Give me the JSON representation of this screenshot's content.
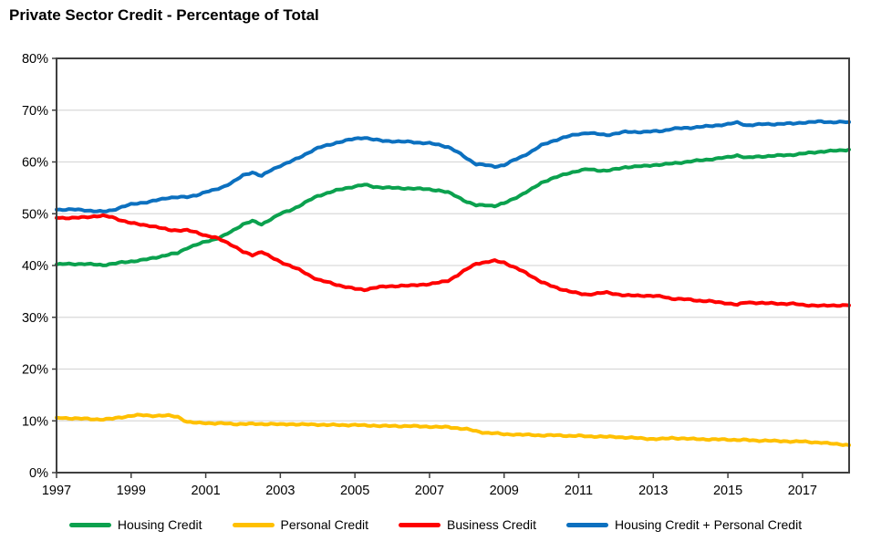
{
  "title": "Private Sector Credit - Percentage of Total",
  "chart_data": {
    "type": "line",
    "title": "Private Sector Credit - Percentage of Total",
    "x_start_year": 1997.0,
    "x_step_years": 0.25,
    "x_axis": {
      "range": [
        1997.0,
        2018.25
      ],
      "tick_years": [
        1997,
        1999,
        2001,
        2003,
        2005,
        2007,
        2009,
        2011,
        2013,
        2015,
        2017
      ],
      "tick_labels": [
        "1997",
        "1999",
        "2001",
        "2003",
        "2005",
        "2007",
        "2009",
        "2011",
        "2013",
        "2015",
        "2017"
      ]
    },
    "y_axis": {
      "range": [
        0,
        80
      ],
      "unit": "%",
      "tick_values": [
        0,
        10,
        20,
        30,
        40,
        50,
        60,
        70,
        80
      ],
      "tick_labels": [
        "0%",
        "10%",
        "20%",
        "30%",
        "40%",
        "50%",
        "60%",
        "70%",
        "80%"
      ]
    },
    "grid": "horizontal-only",
    "grid_color": "#D9D9D9",
    "border_color": "#3F3F3F",
    "legend_position": "bottom",
    "series": [
      {
        "name": "Housing Credit",
        "color": "#0BA14E",
        "values": [
          40.2,
          40.3,
          40.3,
          40.3,
          40.2,
          40.1,
          40.3,
          40.6,
          40.8,
          41.0,
          41.3,
          41.7,
          42.1,
          42.4,
          43.4,
          44.0,
          44.6,
          45.1,
          45.8,
          46.8,
          48.0,
          48.6,
          47.9,
          49.0,
          50.0,
          50.6,
          51.5,
          52.5,
          53.4,
          54.0,
          54.5,
          54.9,
          55.3,
          55.6,
          55.2,
          55.1,
          55.0,
          54.9,
          54.9,
          54.8,
          54.7,
          54.5,
          54.1,
          53.3,
          52.3,
          51.6,
          51.7,
          51.5,
          52.0,
          52.9,
          53.8,
          54.8,
          56.0,
          56.7,
          57.3,
          57.9,
          58.3,
          58.6,
          58.4,
          58.3,
          58.6,
          59.0,
          59.1,
          59.2,
          59.4,
          59.5,
          59.7,
          59.9,
          60.1,
          60.3,
          60.5,
          60.7,
          60.9,
          61.3,
          60.8,
          61.0,
          61.1,
          61.2,
          61.3,
          61.4,
          61.6,
          61.8,
          62.0,
          62.1,
          62.2,
          62.4
        ]
      },
      {
        "name": "Personal Credit",
        "color": "#FFC000",
        "values": [
          10.6,
          10.5,
          10.5,
          10.4,
          10.3,
          10.3,
          10.4,
          10.7,
          11.0,
          11.1,
          11.0,
          11.0,
          11.0,
          10.8,
          9.8,
          9.6,
          9.6,
          9.5,
          9.5,
          9.4,
          9.4,
          9.4,
          9.4,
          9.4,
          9.3,
          9.4,
          9.3,
          9.3,
          9.3,
          9.2,
          9.2,
          9.2,
          9.2,
          9.1,
          9.1,
          9.0,
          9.0,
          9.0,
          9.0,
          8.9,
          8.9,
          8.8,
          8.8,
          8.6,
          8.4,
          8.0,
          7.7,
          7.6,
          7.4,
          7.4,
          7.3,
          7.3,
          7.2,
          7.2,
          7.2,
          7.1,
          7.1,
          7.0,
          7.0,
          6.9,
          6.9,
          6.8,
          6.7,
          6.6,
          6.5,
          6.5,
          6.7,
          6.6,
          6.5,
          6.5,
          6.4,
          6.4,
          6.4,
          6.3,
          6.3,
          6.2,
          6.2,
          6.1,
          6.1,
          6.0,
          6.0,
          5.9,
          5.8,
          5.6,
          5.5,
          5.3
        ]
      },
      {
        "name": "Business Credit",
        "color": "#FE0000",
        "values": [
          49.2,
          49.2,
          49.2,
          49.3,
          49.5,
          49.6,
          49.3,
          48.7,
          48.2,
          47.9,
          47.7,
          47.3,
          46.9,
          46.8,
          46.8,
          46.4,
          45.8,
          45.4,
          44.7,
          43.8,
          42.6,
          42.0,
          42.7,
          41.6,
          40.7,
          40.0,
          39.2,
          38.2,
          37.3,
          36.8,
          36.3,
          35.9,
          35.5,
          35.3,
          35.7,
          35.9,
          36.0,
          36.1,
          36.1,
          36.3,
          36.4,
          36.7,
          37.1,
          38.1,
          39.3,
          40.4,
          40.6,
          40.9,
          40.6,
          39.7,
          38.9,
          37.9,
          36.8,
          36.1,
          35.5,
          35.0,
          34.6,
          34.4,
          34.6,
          34.8,
          34.5,
          34.2,
          34.2,
          34.2,
          34.1,
          34.0,
          33.6,
          33.5,
          33.4,
          33.2,
          33.1,
          32.9,
          32.7,
          32.4,
          32.9,
          32.8,
          32.7,
          32.7,
          32.6,
          32.6,
          32.4,
          32.3,
          32.2,
          32.3,
          32.3,
          32.3
        ]
      },
      {
        "name": "Housing Credit + Personal Credit",
        "color": "#0C70BF",
        "values": [
          50.8,
          50.8,
          50.8,
          50.7,
          50.5,
          50.4,
          50.7,
          51.3,
          51.8,
          52.1,
          52.3,
          52.7,
          53.1,
          53.2,
          53.2,
          53.6,
          54.2,
          54.6,
          55.3,
          56.2,
          57.4,
          58.0,
          57.3,
          58.4,
          59.3,
          60.0,
          60.8,
          61.8,
          62.7,
          63.2,
          63.7,
          64.1,
          64.5,
          64.7,
          64.3,
          64.1,
          64.0,
          63.9,
          63.9,
          63.7,
          63.6,
          63.3,
          62.9,
          61.9,
          60.7,
          59.6,
          59.4,
          59.1,
          59.4,
          60.3,
          61.1,
          62.1,
          63.2,
          63.9,
          64.5,
          65.0,
          65.4,
          65.6,
          65.4,
          65.2,
          65.5,
          65.8,
          65.8,
          65.8,
          65.9,
          66.0,
          66.4,
          66.5,
          66.6,
          66.8,
          66.9,
          67.1,
          67.3,
          67.6,
          67.1,
          67.2,
          67.3,
          67.3,
          67.4,
          67.4,
          67.6,
          67.7,
          67.8,
          67.7,
          67.7,
          67.7
        ]
      }
    ]
  },
  "legend": {
    "items": [
      "Housing Credit",
      "Personal Credit",
      "Business Credit",
      "Housing Credit + Personal Credit"
    ]
  }
}
